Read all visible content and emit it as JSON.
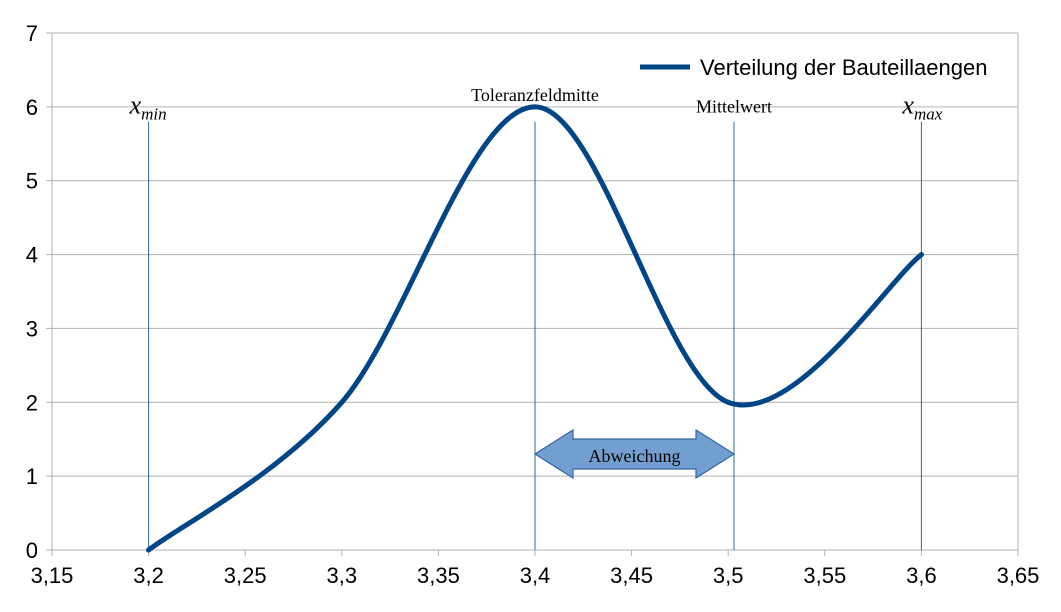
{
  "chart_data": {
    "type": "line",
    "title": "",
    "xlabel": "",
    "ylabel": "",
    "xlim": [
      3.15,
      3.65
    ],
    "ylim": [
      0,
      7
    ],
    "x_ticks": [
      "3,15",
      "3,2",
      "3,25",
      "3,3",
      "3,35",
      "3,4",
      "3,45",
      "3,5",
      "3,55",
      "3,6",
      "3,65"
    ],
    "y_ticks": [
      "0",
      "1",
      "2",
      "3",
      "4",
      "5",
      "6",
      "7"
    ],
    "grid": "horizontal",
    "legend_position": "top-right",
    "series": [
      {
        "name": "Verteilung der Bauteillaengen",
        "color": "#004586",
        "x": [
          3.2,
          3.3,
          3.4,
          3.5,
          3.6
        ],
        "y": [
          0,
          2,
          6,
          2,
          4
        ]
      }
    ],
    "vertical_markers": [
      {
        "x": 3.2,
        "label": "x",
        "subscript": "min"
      },
      {
        "x": 3.4,
        "label": "Toleranzfeldmitte",
        "subscript": ""
      },
      {
        "x": 3.503,
        "label": "Mittelwert",
        "subscript": ""
      },
      {
        "x": 3.6,
        "label": "x",
        "subscript": "max"
      }
    ],
    "arrow_annotation": {
      "label": "Abweichung",
      "from_x": 3.4,
      "to_x": 3.503,
      "y": 1.3,
      "fill": "#729fcf",
      "stroke": "#3465a4"
    }
  }
}
